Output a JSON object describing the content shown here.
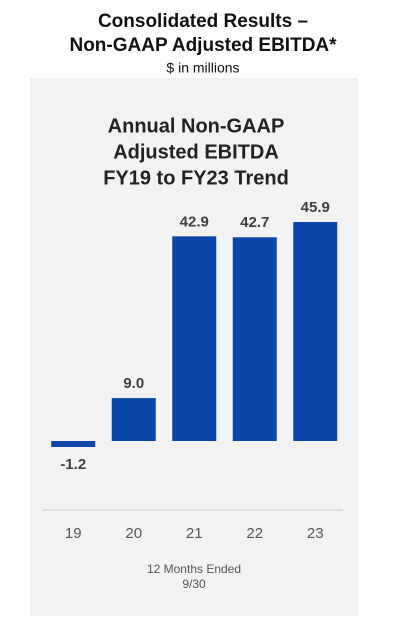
{
  "title_lines": [
    "Consolidated Results –",
    "Non-GAAP Adjusted EBITDA*"
  ],
  "subtitle": "$ in millions",
  "chart_data": {
    "type": "bar",
    "title_lines": [
      "Annual Non-GAAP",
      "Adjusted EBITDA",
      "FY19 to FY23 Trend"
    ],
    "categories": [
      "19",
      "20",
      "21",
      "22",
      "23"
    ],
    "values": [
      -1.2,
      9.0,
      42.9,
      42.7,
      45.9
    ],
    "value_labels": [
      "-1.2",
      "9.0",
      "42.9",
      "42.7",
      "45.9"
    ],
    "color": "#0b47a9",
    "x_label_lines": [
      "12 Months Ended",
      "9/30"
    ]
  }
}
